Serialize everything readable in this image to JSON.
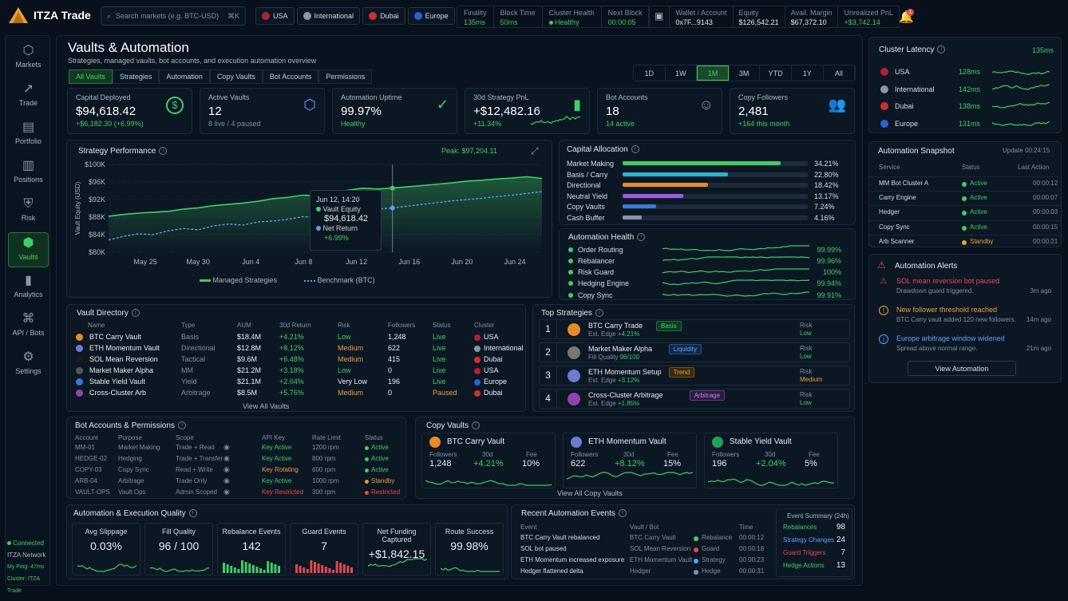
{
  "app": {
    "name": "ITZA Trade"
  },
  "search": {
    "placeholder": "Search markets (e.g. BTC-USD)",
    "shortcut": "⌘K"
  },
  "regions": [
    {
      "label": "USA",
      "color": "#b22234"
    },
    {
      "label": "International",
      "color": "#8896a6"
    },
    {
      "label": "Dubai",
      "color": "#cf2e2e"
    },
    {
      "label": "Europe",
      "color": "#2d5fd6"
    }
  ],
  "netstats": [
    {
      "label": "Finality",
      "value": "135ms"
    },
    {
      "label": "Block Time",
      "value": "50ms"
    },
    {
      "label": "Cluster Health",
      "value": "Healthy"
    },
    {
      "label": "Next Block",
      "value": "00:00:05"
    }
  ],
  "account": [
    {
      "label": "Wallet / Account",
      "value": "0x7F...9143"
    },
    {
      "label": "Equity",
      "value": "$126,542.21"
    },
    {
      "label": "Avail. Margin",
      "value": "$67,372.10"
    },
    {
      "label": "Unrealized PnL",
      "value": "+$3,742.14"
    }
  ],
  "notif_count": "1",
  "nav": [
    {
      "label": "Markets",
      "icon": "markets-icon",
      "glyph": "⬡"
    },
    {
      "label": "Trade",
      "icon": "trade-icon",
      "glyph": "↗"
    },
    {
      "label": "Portfolio",
      "icon": "portfolio-icon",
      "glyph": "▤"
    },
    {
      "label": "Positions",
      "icon": "positions-icon",
      "glyph": "▥"
    },
    {
      "label": "Risk",
      "icon": "risk-icon",
      "glyph": "⛨"
    },
    {
      "label": "Vaults",
      "icon": "vaults-icon",
      "glyph": "⬢"
    },
    {
      "label": "Analytics",
      "icon": "analytics-icon",
      "glyph": "▮"
    },
    {
      "label": "API / Bots",
      "icon": "api-icon",
      "glyph": "⌘"
    },
    {
      "label": "Settings",
      "icon": "settings-icon",
      "glyph": "⚙"
    }
  ],
  "status": {
    "connected": "Connected",
    "network": "ITZA Network",
    "ping": "My Ping: 47ms",
    "cluster": "Cluster: ITZA Trade"
  },
  "page": {
    "title": "Vaults & Automation",
    "subtitle": "Strategies, managed vaults, bot accounts, and execution automation overview"
  },
  "tabs": [
    "All Vaults",
    "Strategies",
    "Automation",
    "Copy Vaults",
    "Bot Accounts",
    "Permissions"
  ],
  "ranges": [
    "1D",
    "1W",
    "1M",
    "3M",
    "YTD",
    "1Y",
    "All"
  ],
  "kpis": [
    {
      "title": "Capital Deployed",
      "value": "$94,618.42",
      "sub": "+$6,182.30 (+6.99%)",
      "icon": "dollar-icon",
      "glyph": "$"
    },
    {
      "title": "Active Vaults",
      "value": "12",
      "sub": "8 live / 4 paused",
      "icon": "cube-icon",
      "glyph": "⬡"
    },
    {
      "title": "Automation Uptime",
      "value": "99.97%",
      "sub": "Healthy",
      "icon": "shield-check-icon",
      "glyph": "✓"
    },
    {
      "title": "30d Strategy PnL",
      "value": "+$12,482.16",
      "sub": "+11.34%",
      "icon": "bar-chart-icon",
      "glyph": "▮"
    },
    {
      "title": "Bot Accounts",
      "value": "18",
      "sub": "14 active",
      "icon": "robot-icon",
      "glyph": "☺"
    },
    {
      "title": "Copy Followers",
      "value": "2,481",
      "sub": "+164 this month",
      "icon": "users-icon",
      "glyph": "👥"
    }
  ],
  "perf": {
    "title": "Strategy Performance",
    "peak": "Peak: $97,204.11",
    "tooltip": {
      "date": "Jun 12, 14:20",
      "l1": "Vault Equity",
      "v1": "$94,618.42",
      "l2": "Net Return",
      "v2": "+6.99%"
    },
    "legend": [
      "Managed Strategies",
      "Benchmark (BTC)"
    ]
  },
  "chart_data": {
    "type": "line",
    "ylabel": "Vault Equity (USD)",
    "ylim": [
      80000,
      100000
    ],
    "yticks": [
      "$100K",
      "$96K",
      "$92K",
      "$88K",
      "$84K",
      "$80K"
    ],
    "xticks": [
      "May 25",
      "May 30",
      "Jun 4",
      "Jun 8",
      "Jun 12",
      "Jun 16",
      "Jun 20",
      "Jun 24"
    ],
    "series": [
      {
        "name": "Managed Strategies",
        "values": [
          88200,
          88600,
          88900,
          89100,
          89300,
          89800,
          90100,
          90600,
          90900,
          91200,
          91600,
          92200,
          92500,
          93000,
          92800,
          93500,
          94100,
          94600,
          94400,
          94618,
          94900,
          95200,
          95500,
          95800,
          96200,
          96400,
          96700,
          96900,
          97204,
          96800
        ]
      },
      {
        "name": "Benchmark (BTC)",
        "values": [
          82800,
          83600,
          84200,
          84000,
          84900,
          85400,
          85100,
          86000,
          86400,
          86200,
          86900,
          87100,
          87500,
          88100,
          88000,
          88600,
          89100,
          89400,
          89800,
          90100,
          90500,
          90900,
          91300,
          91700,
          92000,
          92300,
          92700,
          93000,
          93400,
          93800
        ]
      }
    ]
  },
  "alloc": {
    "title": "Capital Allocation",
    "items": [
      {
        "label": "Market Making",
        "pct": "34.21%",
        "v": 34.21,
        "color": "#3ecf63"
      },
      {
        "label": "Basis / Carry",
        "pct": "22.80%",
        "v": 22.8,
        "color": "#2bb5c9"
      },
      {
        "label": "Directional",
        "pct": "18.42%",
        "v": 18.42,
        "color": "#e8892a"
      },
      {
        "label": "Neutral Yield",
        "pct": "13.17%",
        "v": 13.17,
        "color": "#9b59e0"
      },
      {
        "label": "Copy Vaults",
        "pct": "7.24%",
        "v": 7.24,
        "color": "#3a7bd5"
      },
      {
        "label": "Cash Buffer",
        "pct": "4.16%",
        "v": 4.16,
        "color": "#8896a6"
      }
    ]
  },
  "health": {
    "title": "Automation Health",
    "items": [
      {
        "label": "Order Routing",
        "value": "99.99%"
      },
      {
        "label": "Rebalancer",
        "value": "99.96%"
      },
      {
        "label": "Risk Guard",
        "value": "100%"
      },
      {
        "label": "Hedging Engine",
        "value": "99.94%"
      },
      {
        "label": "Copy Sync",
        "value": "99.91%"
      }
    ]
  },
  "vaultdir": {
    "title": "Vault Directory",
    "headers": [
      "Name",
      "Type",
      "AUM",
      "30d Return",
      "Risk",
      "Followers",
      "Status",
      "Cluster"
    ],
    "rows": [
      {
        "name": "BTC Carry Vault",
        "color": "#e8892a",
        "type": "Basis",
        "aum": "$18.4M",
        "ret": "+4.21%",
        "risk": "Low",
        "risk_c": "g",
        "fol": "1,248",
        "status": "Live",
        "st_c": "g",
        "cluster": "USA",
        "cl_c": "#b22234"
      },
      {
        "name": "ETH Momentum Vault",
        "color": "#6b7bd6",
        "type": "Directional",
        "aum": "$12.8M",
        "ret": "+8.12%",
        "risk": "Medium",
        "risk_c": "o",
        "fol": "622",
        "status": "Live",
        "st_c": "g",
        "cluster": "International",
        "cl_c": "#8896a6"
      },
      {
        "name": "SOL Mean Reversion",
        "color": "#1b1b1b",
        "type": "Tactical",
        "aum": "$9.6M",
        "ret": "+6.48%",
        "risk": "Medium",
        "risk_c": "o",
        "fol": "415",
        "status": "Live",
        "st_c": "g",
        "cluster": "Dubai",
        "cl_c": "#cf2e2e"
      },
      {
        "name": "Market Maker Alpha",
        "color": "#555",
        "type": "MM",
        "aum": "$21.2M",
        "ret": "+3.18%",
        "risk": "Low",
        "risk_c": "g",
        "fol": "0",
        "status": "Live",
        "st_c": "g",
        "cluster": "USA",
        "cl_c": "#b22234"
      },
      {
        "name": "Stable Yield Vault",
        "color": "#2b7be0",
        "type": "Yield",
        "aum": "$21.1M",
        "ret": "+2.04%",
        "risk": "Very Low",
        "risk_c": "w",
        "fol": "196",
        "status": "Live",
        "st_c": "g",
        "cluster": "Europe",
        "cl_c": "#2d5fd6"
      },
      {
        "name": "Cross-Cluster Arb",
        "color": "#8e44ad",
        "type": "Arbitrage",
        "aum": "$8.5M",
        "ret": "+5.76%",
        "risk": "Medium",
        "risk_c": "o",
        "fol": "0",
        "status": "Paused",
        "st_c": "o",
        "cluster": "Dubai",
        "cl_c": "#cf2e2e"
      }
    ],
    "view_all": "View All Vaults"
  },
  "top": {
    "title": "Top Strategies",
    "items": [
      {
        "rank": "1",
        "name": "BTC Carry Trade",
        "tag": "Basis",
        "tag_c": "#3ecf63",
        "tag_bg": "#123a22",
        "metric": "Est. Edge",
        "val": "+4.21%",
        "risk": "Low",
        "risk_c": "g",
        "color": "#e8892a"
      },
      {
        "rank": "2",
        "name": "Market Maker Alpha",
        "tag": "Liquidity",
        "tag_c": "#5aa1ff",
        "tag_bg": "#12284a",
        "metric": "Fill Quality",
        "val": "96/100",
        "risk": "Low",
        "risk_c": "g",
        "color": "#777"
      },
      {
        "rank": "3",
        "name": "ETH Momentum Setup",
        "tag": "Trend",
        "tag_c": "#e8a035",
        "tag_bg": "#3a2a10",
        "metric": "Est. Edge",
        "val": "+3.12%",
        "risk": "Medium",
        "risk_c": "o",
        "color": "#6b7bd6"
      },
      {
        "rank": "4",
        "name": "Cross-Cluster Arbitrage",
        "tag": "Arbitrage",
        "tag_c": "#c08ae8",
        "tag_bg": "#2e1a45",
        "metric": "Est. Edge",
        "val": "+1.85%",
        "risk": "Low",
        "risk_c": "g",
        "color": "#8e44ad"
      }
    ],
    "risk_label": "Risk"
  },
  "bots": {
    "title": "Bot Accounts & Permissions",
    "headers": [
      "Account",
      "Purpose",
      "Scope",
      "API Key",
      "Rate Limit",
      "Status"
    ],
    "rows": [
      {
        "acct": "MM-01",
        "purpose": "Market Making",
        "scope": "Trade + Read",
        "key": "Key Active",
        "key_c": "g",
        "rate": "1200 rpm",
        "status": "Active",
        "st_c": "g"
      },
      {
        "acct": "HEDGE-02",
        "purpose": "Hedging",
        "scope": "Trade + Transfer",
        "key": "Key Active",
        "key_c": "g",
        "rate": "800 rpm",
        "status": "Active",
        "st_c": "g"
      },
      {
        "acct": "COPY-03",
        "purpose": "Copy Sync",
        "scope": "Read + Write",
        "key": "Key Rotating",
        "key_c": "o",
        "rate": "600 rpm",
        "status": "Active",
        "st_c": "g"
      },
      {
        "acct": "ARB-04",
        "purpose": "Arbitrage",
        "scope": "Trade Only",
        "key": "Key Active",
        "key_c": "g",
        "rate": "1000 rpm",
        "status": "Standby",
        "st_c": "o"
      },
      {
        "acct": "VAULT-OPS",
        "purpose": "Vault Ops",
        "scope": "Admin Scoped",
        "key": "Key Restricted",
        "key_c": "r",
        "rate": "300 rpm",
        "status": "Restricted",
        "st_c": "r"
      }
    ]
  },
  "copy": {
    "title": "Copy Vaults",
    "labels": [
      "Followers",
      "30d",
      "Fee"
    ],
    "items": [
      {
        "name": "BTC Carry Vault",
        "color": "#e8892a",
        "fol": "1,248",
        "ret": "+4.21%",
        "fee": "10%"
      },
      {
        "name": "ETH Momentum Vault",
        "color": "#6b7bd6",
        "fol": "622",
        "ret": "+8.12%",
        "fee": "15%"
      },
      {
        "name": "Stable Yield Vault",
        "color": "#1fa35a",
        "fol": "196",
        "ret": "+2.04%",
        "fee": "5%"
      }
    ],
    "view_all": "View All Copy Vaults"
  },
  "quality": {
    "title": "Automation & Execution Quality",
    "items": [
      {
        "label": "Avg Slippage",
        "value": "0.03%"
      },
      {
        "label": "Fill Quality",
        "value": "96 / 100"
      },
      {
        "label": "Rebalance Events",
        "value": "142"
      },
      {
        "label": "Guard Events",
        "value": "7"
      },
      {
        "label": "Net Funding Captured",
        "value": "+$1,842.15"
      },
      {
        "label": "Route Success",
        "value": "99.98%"
      }
    ]
  },
  "events": {
    "title": "Recent Automation Events",
    "headers": [
      "Event",
      "Vault / Bot",
      "",
      "Time"
    ],
    "rows": [
      {
        "ev": "BTC Carry Vault rebalanced",
        "vault": "BTC Carry Vault",
        "type": "Rebalance",
        "t_c": "#3ecf63",
        "time": "00:00:12"
      },
      {
        "ev": "SOL bot paused",
        "vault": "SOL Mean Reversion",
        "type": "Guard",
        "t_c": "#e5484d",
        "time": "00:00:18"
      },
      {
        "ev": "ETH Momentum increased exposure",
        "vault": "ETH Momentum Vault",
        "type": "Strategy",
        "t_c": "#5aa1ff",
        "time": "00:00:23"
      },
      {
        "ev": "Hedger flattened delta",
        "vault": "Hedger",
        "type": "Hedge",
        "t_c": "#8896a6",
        "time": "00:00:31"
      }
    ],
    "summary_title": "Event Summary (24h)",
    "summary": [
      {
        "label": "Rebalances",
        "value": "98",
        "c": "#3ecf63"
      },
      {
        "label": "Strategy Changes",
        "value": "24",
        "c": "#5aa1ff"
      },
      {
        "label": "Guard Triggers",
        "value": "7",
        "c": "#e5484d"
      },
      {
        "label": "Hedge Actions",
        "value": "13",
        "c": "#3ecf63"
      }
    ]
  },
  "latency": {
    "title": "Cluster Latency",
    "value": "135ms",
    "items": [
      {
        "label": "USA",
        "ms": "128ms",
        "c": "#b22234"
      },
      {
        "label": "International",
        "ms": "142ms",
        "c": "#8896a6"
      },
      {
        "label": "Dubai",
        "ms": "138ms",
        "c": "#cf2e2e"
      },
      {
        "label": "Europe",
        "ms": "131ms",
        "c": "#2d5fd6"
      }
    ]
  },
  "snapshot": {
    "title": "Automation Snapshot",
    "update": "Update 00:24:15",
    "headers": [
      "Service",
      "Status",
      "Last Action"
    ],
    "rows": [
      {
        "svc": "MM Bot Cluster A",
        "status": "Active",
        "c": "g",
        "t": "00:00:12"
      },
      {
        "svc": "Carry Engine",
        "status": "Active",
        "c": "g",
        "t": "00:00:07"
      },
      {
        "svc": "Hedger",
        "status": "Active",
        "c": "g",
        "t": "00:00:03"
      },
      {
        "svc": "Copy Sync",
        "status": "Active",
        "c": "g",
        "t": "00:00:15"
      },
      {
        "svc": "Arb Scanner",
        "status": "Standby",
        "c": "o",
        "t": "00:00:21"
      }
    ]
  },
  "alerts": {
    "title": "Automation Alerts",
    "items": [
      {
        "title": "SOL mean reversion bot paused",
        "desc": "Drawdown guard triggered.",
        "time": "3m ago",
        "c": "#e5484d",
        "glyph": "⚠"
      },
      {
        "title": "New follower threshold reached",
        "desc": "BTC Carry vault added 120 new followers.",
        "time": "14m ago",
        "c": "#e8a035",
        "glyph": "!"
      },
      {
        "title": "Europe arbitrage window widened",
        "desc": "Spread above normal range.",
        "time": "21m ago",
        "c": "#5aa1ff",
        "glyph": "i"
      }
    ],
    "button": "View Automation"
  }
}
